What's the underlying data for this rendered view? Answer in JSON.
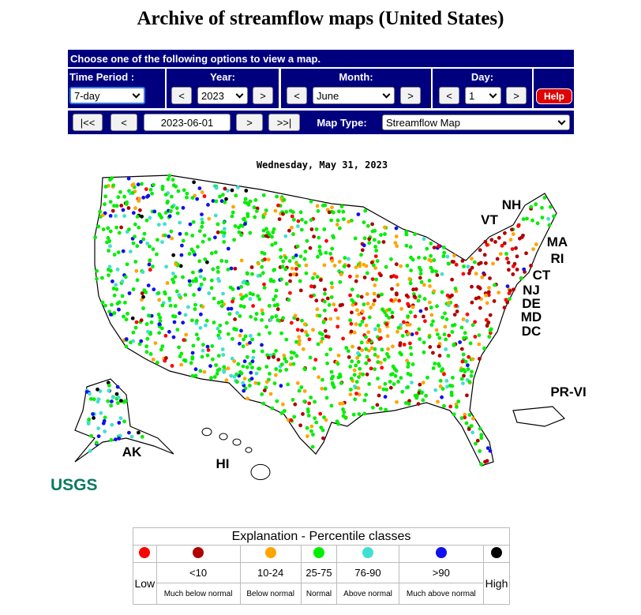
{
  "header": {
    "title": "Archive of streamflow maps (United States)"
  },
  "form": {
    "instruction": "Choose one of the following options to view a map.",
    "time_period": {
      "label": "Time Period :",
      "value": "7-day"
    },
    "year": {
      "label": "Year:",
      "prev": "<",
      "value": "2023",
      "next": ">"
    },
    "month": {
      "label": "Month:",
      "prev": "<",
      "value": "June",
      "next": ">"
    },
    "day": {
      "label": "Day:",
      "prev": "<",
      "value": "1",
      "next": ">"
    },
    "help": "Help",
    "nav": {
      "first": "|<<",
      "prev": "<",
      "date": "2023-06-01",
      "next": ">",
      "last": ">>|"
    },
    "map_type": {
      "label": "Map Type:",
      "value": "Streamflow Map"
    }
  },
  "map": {
    "date": "Wednesday, May 31, 2023",
    "labels": [
      "NH",
      "VT",
      "MA",
      "RI",
      "CT",
      "NJ",
      "DE",
      "MD",
      "DC",
      "PR-VI",
      "AK",
      "HI"
    ],
    "logo": "USGS"
  },
  "legend": {
    "title": "Explanation - Percentile classes",
    "classes": [
      {
        "code": "Low",
        "color": "#ff0000"
      },
      {
        "code": "<10",
        "description": "Much below normal",
        "color": "#b00000"
      },
      {
        "code": "10-24",
        "description": "Below normal",
        "color": "#ffa500"
      },
      {
        "code": "25-75",
        "description": "Normal",
        "color": "#00ee00"
      },
      {
        "code": "76-90",
        "description": "Above normal",
        "color": "#40e0d0"
      },
      {
        "code": ">90",
        "description": "Much above normal",
        "color": "#1010ee"
      },
      {
        "code": "High",
        "color": "#000000"
      }
    ]
  }
}
